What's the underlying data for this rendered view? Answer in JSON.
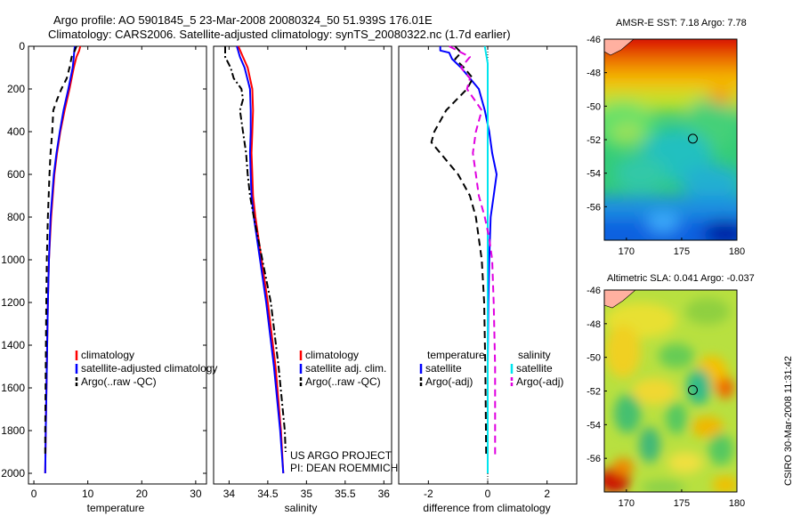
{
  "titles": {
    "line1": "Argo profile: AO 5901845_5 23-Mar-2008 20080324_50 51.939S 176.01E",
    "line2": "Climatology: CARS2006. Satellite-adjusted climatology: synTS_20080322.nc (1.7d earlier)"
  },
  "side_text": "CSIRO 30-Mar-2008 11:31:42",
  "project_text": [
    "US ARGO PROJECT",
    "PI: DEAN ROEMMICH"
  ],
  "colors": {
    "climatology": "#ff0000",
    "satellite": "#0000ff",
    "argo": "#000000",
    "sal_satellite": "#00e5ee",
    "sal_argo": "#e000e0",
    "ref": "#000000"
  },
  "chart_data": [
    {
      "type": "line",
      "id": "temp",
      "xlabel": "temperature",
      "ylim": [
        2050,
        0
      ],
      "xlim": [
        -1,
        32
      ],
      "xticks": [
        0,
        10,
        20,
        30
      ],
      "xtick_labels": [
        "0",
        "10",
        "20",
        "30"
      ],
      "yticks": [
        0,
        200,
        400,
        600,
        800,
        1000,
        1200,
        1400,
        1600,
        1800,
        2000
      ],
      "ytick_labels": [
        "0",
        "200",
        "400",
        "600",
        "800",
        "1000",
        "1200",
        "1400",
        "1600",
        "1800",
        "2000"
      ],
      "legend": [
        "climatology",
        "satellite-adjusted climatology",
        "Argo(..raw -QC)"
      ],
      "series": [
        {
          "name": "climatology",
          "color_key": "climatology",
          "dash": "",
          "width": 2,
          "depth": [
            0,
            20,
            50,
            100,
            200,
            300,
            400,
            500,
            600,
            800,
            1000,
            1200,
            1500,
            1800,
            2000
          ],
          "values": [
            8.6,
            8.4,
            7.9,
            7.4,
            6.6,
            5.7,
            4.9,
            4.3,
            3.8,
            3.2,
            2.8,
            2.6,
            2.4,
            2.2,
            2.1
          ]
        },
        {
          "name": "satellite-adjusted climatology",
          "color_key": "satellite",
          "dash": "",
          "width": 2,
          "depth": [
            0,
            20,
            50,
            100,
            200,
            300,
            400,
            500,
            600,
            800,
            1000,
            1200,
            1500,
            1800,
            2000
          ],
          "values": [
            7.6,
            7.5,
            7.4,
            7.2,
            6.4,
            5.5,
            4.8,
            4.2,
            3.7,
            3.1,
            2.8,
            2.6,
            2.4,
            2.2,
            2.1
          ]
        },
        {
          "name": "Argo(..raw -QC)",
          "color_key": "argo",
          "dash": "7,5",
          "width": 2,
          "depth": [
            0,
            20,
            50,
            100,
            150,
            200,
            250,
            300,
            400,
            500,
            600,
            800,
            1000,
            1200,
            1500,
            1800,
            1920
          ],
          "values": [
            7.9,
            7.6,
            7.0,
            6.6,
            6.1,
            5.1,
            4.3,
            3.6,
            3.4,
            3.1,
            2.9,
            2.6,
            2.4,
            2.3,
            2.2,
            2.1,
            2.1
          ]
        }
      ]
    },
    {
      "type": "line",
      "id": "sal",
      "xlabel": "salinity",
      "ylim": [
        2050,
        0
      ],
      "xlim": [
        33.8,
        36.1
      ],
      "xticks": [
        34,
        34.5,
        35,
        35.5,
        36
      ],
      "xtick_labels": [
        "34",
        "34.5",
        "35",
        "35.5",
        "36"
      ],
      "legend": [
        "climatology",
        "satellite adj. clim.",
        "Argo(..raw -QC)"
      ],
      "series": [
        {
          "name": "climatology",
          "color_key": "climatology",
          "dash": "",
          "width": 2,
          "depth": [
            0,
            50,
            100,
            200,
            300,
            400,
            500,
            600,
            700,
            800,
            1000,
            1200,
            1500,
            1800,
            2000
          ],
          "values": [
            34.12,
            34.18,
            34.24,
            34.3,
            34.31,
            34.3,
            34.29,
            34.3,
            34.31,
            34.34,
            34.42,
            34.5,
            34.6,
            34.67,
            34.7
          ]
        },
        {
          "name": "satellite adj. clim.",
          "color_key": "satellite",
          "dash": "",
          "width": 2,
          "depth": [
            0,
            50,
            100,
            200,
            300,
            400,
            500,
            600,
            700,
            800,
            1000,
            1200,
            1500,
            1800,
            2000
          ],
          "values": [
            34.1,
            34.14,
            34.2,
            34.27,
            34.28,
            34.28,
            34.27,
            34.28,
            34.29,
            34.32,
            34.4,
            34.48,
            34.58,
            34.66,
            34.7
          ]
        },
        {
          "name": "Argo(..raw -QC)",
          "color_key": "argo",
          "dash": "8,3,2,3",
          "width": 2,
          "depth": [
            0,
            50,
            100,
            150,
            200,
            250,
            300,
            400,
            500,
            600,
            700,
            800,
            1000,
            1200,
            1500,
            1800,
            1900
          ],
          "values": [
            33.95,
            33.95,
            34.02,
            34.06,
            34.16,
            34.18,
            34.14,
            34.18,
            34.22,
            34.24,
            34.27,
            34.32,
            34.43,
            34.54,
            34.64,
            34.72,
            34.73
          ]
        }
      ]
    },
    {
      "type": "line",
      "id": "diff",
      "xlabel": "difference from climatology",
      "ylim": [
        2050,
        0
      ],
      "xlim": [
        -3,
        3
      ],
      "xticks": [
        -2,
        0,
        2
      ],
      "xtick_labels": [
        "-2",
        "0",
        "2"
      ],
      "legend_temp": [
        "temperature",
        "satellite",
        "Argo(-adj)"
      ],
      "legend_sal": [
        "salinity",
        "satellite",
        "Argo(-adj)"
      ],
      "series": [
        {
          "name": "temperature satellite",
          "color_key": "satellite",
          "dash": "",
          "width": 2,
          "depth": [
            0,
            20,
            30,
            60,
            100,
            200,
            300,
            400,
            500,
            600,
            700,
            800,
            1000,
            1200,
            1500,
            1800,
            2000
          ],
          "values": [
            -1.6,
            -1.6,
            -1.3,
            -1.2,
            -0.9,
            -0.3,
            -0.1,
            0.05,
            0.15,
            0.3,
            0.2,
            0.1,
            0.05,
            0.02,
            0.0,
            0.0,
            0.0
          ]
        },
        {
          "name": "temperature Argo(-adj)",
          "color_key": "argo",
          "dash": "8,5",
          "width": 2,
          "depth": [
            0,
            30,
            60,
            100,
            150,
            200,
            300,
            400,
            450,
            500,
            600,
            700,
            800,
            1000,
            1200,
            1500,
            1800,
            1920
          ],
          "values": [
            -1.1,
            -0.9,
            -1.1,
            -0.8,
            -0.5,
            -0.7,
            -1.4,
            -1.8,
            -1.9,
            -1.6,
            -1.0,
            -0.6,
            -0.4,
            -0.2,
            -0.12,
            -0.08,
            -0.06,
            -0.05
          ]
        },
        {
          "name": "salinity satellite",
          "color_key": "sal_satellite",
          "dash": "",
          "width": 2,
          "depth": [
            0,
            40,
            80,
            200,
            500,
            800,
            1000,
            1200,
            1500,
            1800,
            2000
          ],
          "values": [
            -0.1,
            -0.05,
            0.0,
            0.0,
            0.0,
            0.0,
            0.0,
            0.0,
            0.0,
            0.0,
            0.0
          ]
        },
        {
          "name": "salinity Argo(-adj)",
          "color_key": "sal_argo",
          "dash": "8,5",
          "width": 2,
          "depth": [
            0,
            50,
            100,
            150,
            200,
            300,
            400,
            500,
            600,
            700,
            800,
            900,
            1000,
            1200,
            1500,
            1800,
            1920
          ],
          "values": [
            -1.3,
            -0.6,
            -0.9,
            -0.6,
            -0.7,
            -0.2,
            -0.4,
            -0.5,
            -0.4,
            -0.3,
            -0.1,
            0.05,
            0.15,
            0.2,
            0.25,
            0.25,
            0.25
          ]
        }
      ]
    },
    {
      "type": "heatmap",
      "id": "sst_map",
      "title": "AMSR-E SST: 7.18 Argo: 7.78",
      "xlim": [
        168,
        180
      ],
      "ylim": [
        -58,
        -46
      ],
      "xticks": [
        170,
        175,
        180
      ],
      "xtick_labels": [
        "170",
        "175",
        "180"
      ],
      "yticks": [
        -46,
        -48,
        -50,
        -52,
        -54,
        -56
      ],
      "ytick_labels": [
        "-46",
        "-48",
        "-50",
        "-52",
        "-54",
        "-56"
      ],
      "marker": {
        "lon": 176.01,
        "lat": -51.94
      }
    },
    {
      "type": "heatmap",
      "id": "sla_map",
      "title": "Altimetric SLA: 0.041 Argo: -0.037",
      "xlim": [
        168,
        180
      ],
      "ylim": [
        -58,
        -46
      ],
      "xticks": [
        170,
        175,
        180
      ],
      "xtick_labels": [
        "170",
        "175",
        "180"
      ],
      "yticks": [
        -46,
        -48,
        -50,
        -52,
        -54,
        -56
      ],
      "ytick_labels": [
        "-46",
        "-48",
        "-50",
        "-52",
        "-54",
        "-56"
      ],
      "marker": {
        "lon": 176.01,
        "lat": -51.94
      }
    }
  ]
}
